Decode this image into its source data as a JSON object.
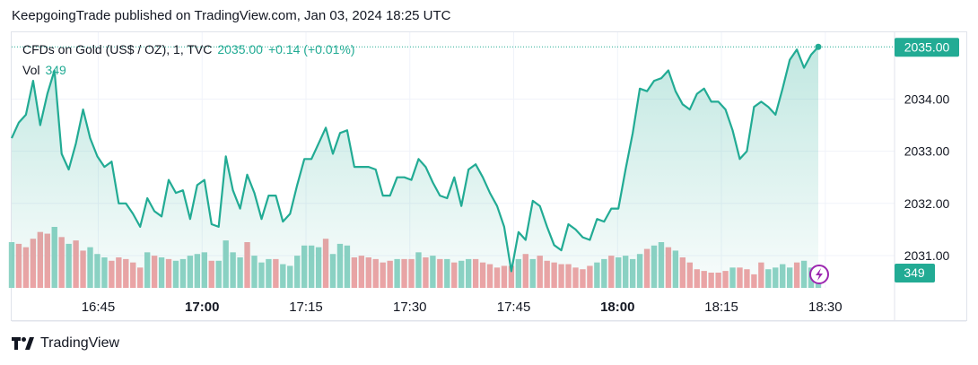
{
  "header": {
    "published_by": "KeepgoingTrade published on TradingView.com, Jan 03, 2024 18:25 UTC"
  },
  "legend": {
    "symbol": "CFDs on Gold (US$ / OZ), 1, TVC",
    "last": "2035.00",
    "change": "+0.14 (+0.01%)",
    "volume_label": "Vol",
    "volume_value": "349"
  },
  "footer": {
    "brand": "TradingView",
    "logo_icon": "tradingview-logo-icon"
  },
  "colors": {
    "up": "#22ab94",
    "down": "#f7525f",
    "line": "#22ab94",
    "axis_text": "#131722",
    "grid": "#f0f3fa",
    "vol_up": "#8fd3c5",
    "vol_down": "#f1a4a6",
    "replay_icon": "#9c27b0"
  },
  "chart_data": {
    "type": "area",
    "title": "",
    "xlabel": "",
    "ylabel": "",
    "x_ticks": [
      {
        "label": "16:45",
        "minute": 45,
        "bold": false
      },
      {
        "label": "17:00",
        "minute": 60,
        "bold": true
      },
      {
        "label": "17:15",
        "minute": 75,
        "bold": false
      },
      {
        "label": "17:30",
        "minute": 90,
        "bold": false
      },
      {
        "label": "17:45",
        "minute": 105,
        "bold": false
      },
      {
        "label": "18:00",
        "minute": 120,
        "bold": true
      },
      {
        "label": "18:15",
        "minute": 135,
        "bold": false
      },
      {
        "label": "18:30",
        "minute": 150,
        "bold": false
      }
    ],
    "x_start_time": "16:33",
    "x_range_minutes_from_1600": [
      32.5,
      160
    ],
    "y_ticks": [
      2031.0,
      2032.0,
      2033.0,
      2034.0
    ],
    "y_range": [
      2030.38,
      2035.28
    ],
    "last_price_label": "2035.00",
    "volume_label": "349",
    "series": [
      {
        "name": "CFDs on Gold (US$ / OZ)",
        "values": [
          2033.25,
          2033.55,
          2033.7,
          2034.35,
          2033.5,
          2034.1,
          2034.55,
          2032.95,
          2032.65,
          2033.15,
          2033.8,
          2033.25,
          2032.9,
          2032.7,
          2032.8,
          2032.0,
          2032.0,
          2031.8,
          2031.55,
          2032.1,
          2031.85,
          2031.75,
          2032.45,
          2032.2,
          2032.25,
          2031.7,
          2032.35,
          2032.45,
          2031.6,
          2031.55,
          2032.9,
          2032.25,
          2031.9,
          2032.55,
          2032.2,
          2031.7,
          2032.15,
          2032.15,
          2031.65,
          2031.8,
          2032.35,
          2032.85,
          2032.85,
          2033.15,
          2033.45,
          2032.95,
          2033.35,
          2033.4,
          2032.7,
          2032.7,
          2032.7,
          2032.65,
          2032.15,
          2032.15,
          2032.5,
          2032.5,
          2032.45,
          2032.85,
          2032.7,
          2032.4,
          2032.15,
          2032.1,
          2032.5,
          2031.95,
          2032.65,
          2032.75,
          2032.5,
          2032.2,
          2031.95,
          2031.55,
          2030.7,
          2031.45,
          2031.3,
          2032.05,
          2031.95,
          2031.55,
          2031.2,
          2031.1,
          2031.6,
          2031.5,
          2031.35,
          2031.3,
          2031.7,
          2031.65,
          2031.9,
          2031.9,
          2032.65,
          2033.35,
          2034.2,
          2034.15,
          2034.35,
          2034.4,
          2034.55,
          2034.15,
          2033.9,
          2033.8,
          2034.1,
          2034.2,
          2033.95,
          2033.95,
          2033.8,
          2033.4,
          2032.85,
          2033.0,
          2033.85,
          2033.95,
          2033.85,
          2033.7,
          2034.2,
          2034.75,
          2034.95,
          2034.6,
          2034.85,
          2035.0
        ]
      }
    ],
    "volume": {
      "values": [
        1.35,
        1.3,
        1.2,
        1.45,
        1.65,
        1.6,
        1.8,
        1.5,
        1.3,
        1.4,
        1.1,
        1.2,
        1.0,
        0.9,
        0.8,
        0.9,
        0.85,
        0.75,
        0.6,
        1.05,
        0.95,
        0.9,
        0.85,
        0.8,
        0.85,
        0.95,
        1.0,
        1.05,
        0.8,
        0.8,
        1.4,
        1.05,
        0.9,
        1.35,
        0.95,
        0.75,
        0.85,
        0.85,
        0.7,
        0.65,
        0.95,
        1.25,
        1.25,
        1.2,
        1.45,
        1.0,
        1.3,
        1.25,
        0.9,
        0.95,
        0.9,
        0.85,
        0.75,
        0.8,
        0.85,
        0.85,
        0.85,
        1.05,
        0.9,
        0.95,
        0.85,
        0.85,
        0.75,
        0.8,
        0.85,
        0.85,
        0.75,
        0.7,
        0.6,
        0.65,
        0.65,
        0.85,
        1.0,
        0.85,
        0.95,
        0.8,
        0.75,
        0.7,
        0.7,
        0.6,
        0.55,
        0.65,
        0.75,
        0.85,
        0.95,
        0.9,
        0.95,
        0.85,
        1.0,
        1.15,
        1.25,
        1.35,
        1.2,
        1.1,
        0.9,
        0.75,
        0.55,
        0.5,
        0.45,
        0.45,
        0.5,
        0.6,
        0.6,
        0.55,
        0.4,
        0.75,
        0.55,
        0.6,
        0.7,
        0.6,
        0.75,
        0.8,
        0.6,
        0.5
      ],
      "up": [
        true,
        false,
        false,
        false,
        false,
        false,
        true,
        false,
        true,
        false,
        false,
        true,
        true,
        true,
        false,
        false,
        false,
        false,
        false,
        true,
        false,
        true,
        false,
        true,
        true,
        true,
        true,
        true,
        false,
        true,
        true,
        true,
        true,
        false,
        true,
        true,
        true,
        false,
        true,
        true,
        true,
        true,
        true,
        true,
        false,
        true,
        true,
        true,
        false,
        false,
        false,
        false,
        false,
        false,
        true,
        false,
        false,
        true,
        false,
        true,
        false,
        true,
        false,
        true,
        true,
        false,
        false,
        false,
        false,
        false,
        false,
        true,
        false,
        true,
        false,
        false,
        false,
        false,
        false,
        false,
        false,
        false,
        true,
        true,
        false,
        true,
        true,
        true,
        true,
        false,
        true,
        true,
        false,
        true,
        false,
        false,
        false,
        false,
        false,
        false,
        false,
        true,
        false,
        false,
        false,
        false,
        true,
        true,
        true,
        true,
        false,
        true,
        true,
        true
      ]
    }
  }
}
